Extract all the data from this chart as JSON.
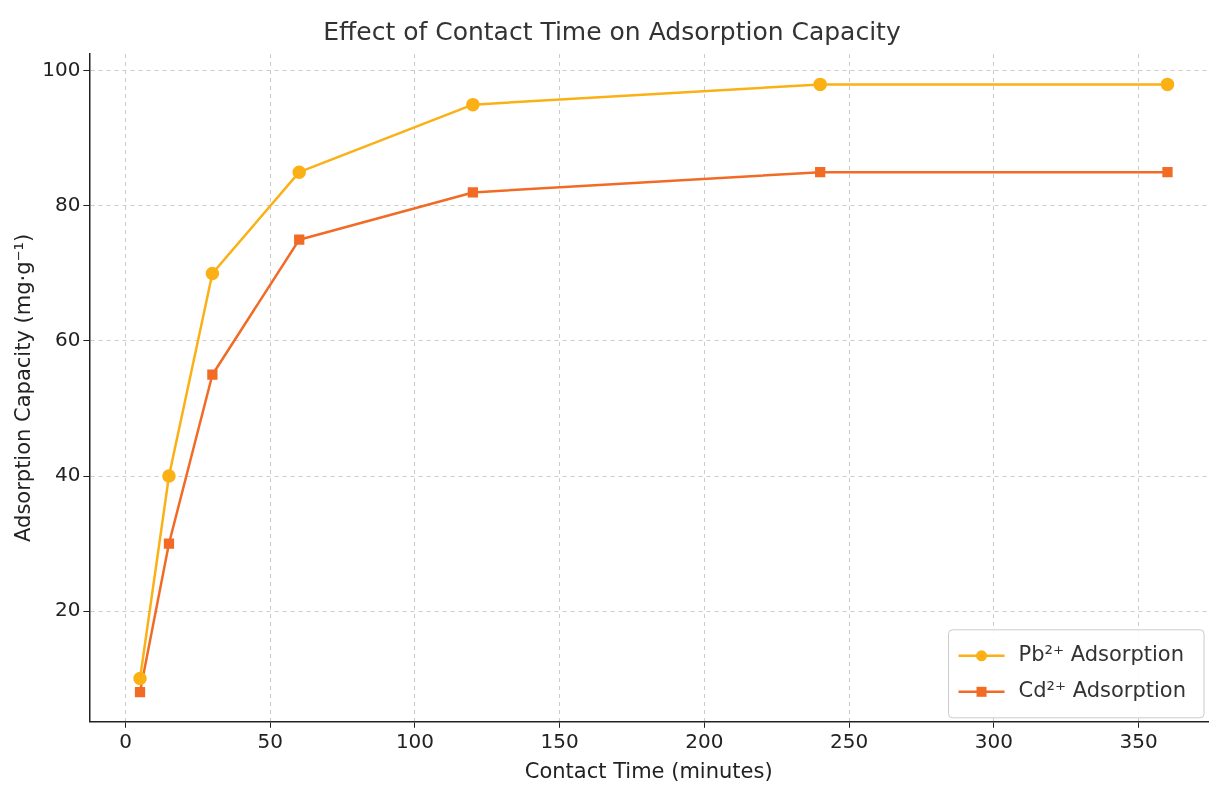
{
  "chart_data": {
    "type": "line",
    "title": "Effect of Contact Time on Adsorption Capacity",
    "xlabel": "Contact Time (minutes)",
    "ylabel": "Adsorption Capacity (mg·g⁻¹)",
    "x": [
      5,
      15,
      30,
      60,
      120,
      240,
      360
    ],
    "series": [
      {
        "name": "Pb²⁺ Adsorption",
        "color": "#fbb015",
        "marker": "circle",
        "values": [
          10,
          40,
          70,
          85,
          95,
          98,
          98
        ]
      },
      {
        "name": "Cd²⁺ Adsorption",
        "color": "#f26b25",
        "marker": "square",
        "values": [
          8,
          30,
          55,
          75,
          82,
          85,
          85
        ]
      }
    ],
    "xlim": [
      -12.5,
      374
    ],
    "ylim": [
      3.6,
      102.5
    ],
    "xticks": [
      0,
      50,
      100,
      150,
      200,
      250,
      300,
      350
    ],
    "yticks": [
      20,
      40,
      60,
      80,
      100
    ],
    "grid": true,
    "legend": "bottom right",
    "line_style": "solid"
  }
}
